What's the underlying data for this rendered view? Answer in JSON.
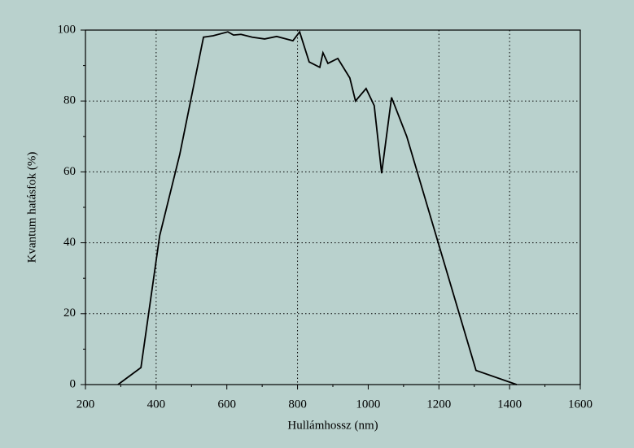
{
  "chart_data": {
    "type": "line",
    "x_label": "Hullámhossz (nm)",
    "y_label": "Kvantum hatásfok (%)",
    "series": [
      {
        "name": null,
        "color": "#000000",
        "x": [
          292,
          357,
          410,
          467,
          534,
          561,
          603,
          619,
          640,
          672,
          707,
          741,
          787,
          806,
          833,
          863,
          872,
          886,
          914,
          948,
          964,
          994,
          1017,
          1038,
          1066,
          1109,
          1305,
          1420
        ],
        "values": [
          0,
          4.8,
          42,
          65,
          98,
          98.4,
          99.5,
          98.6,
          98.8,
          98,
          97.5,
          98.2,
          97,
          99.5,
          91,
          89.5,
          93.6,
          90.6,
          92,
          86.5,
          80,
          83.5,
          78.7,
          59.6,
          81,
          70,
          4,
          0
        ]
      }
    ],
    "xlim": [
      200,
      1600
    ],
    "xticks": [
      200,
      400,
      600,
      800,
      1000,
      1200,
      1400,
      1600
    ],
    "ylim": [
      0,
      100
    ],
    "yticks": [
      0,
      20,
      40,
      60,
      80,
      100
    ],
    "x_gridlines": [
      400,
      800,
      1200,
      1400
    ],
    "y_gridlines": [
      20,
      40,
      60,
      80
    ],
    "background": "#b9d1cd"
  }
}
